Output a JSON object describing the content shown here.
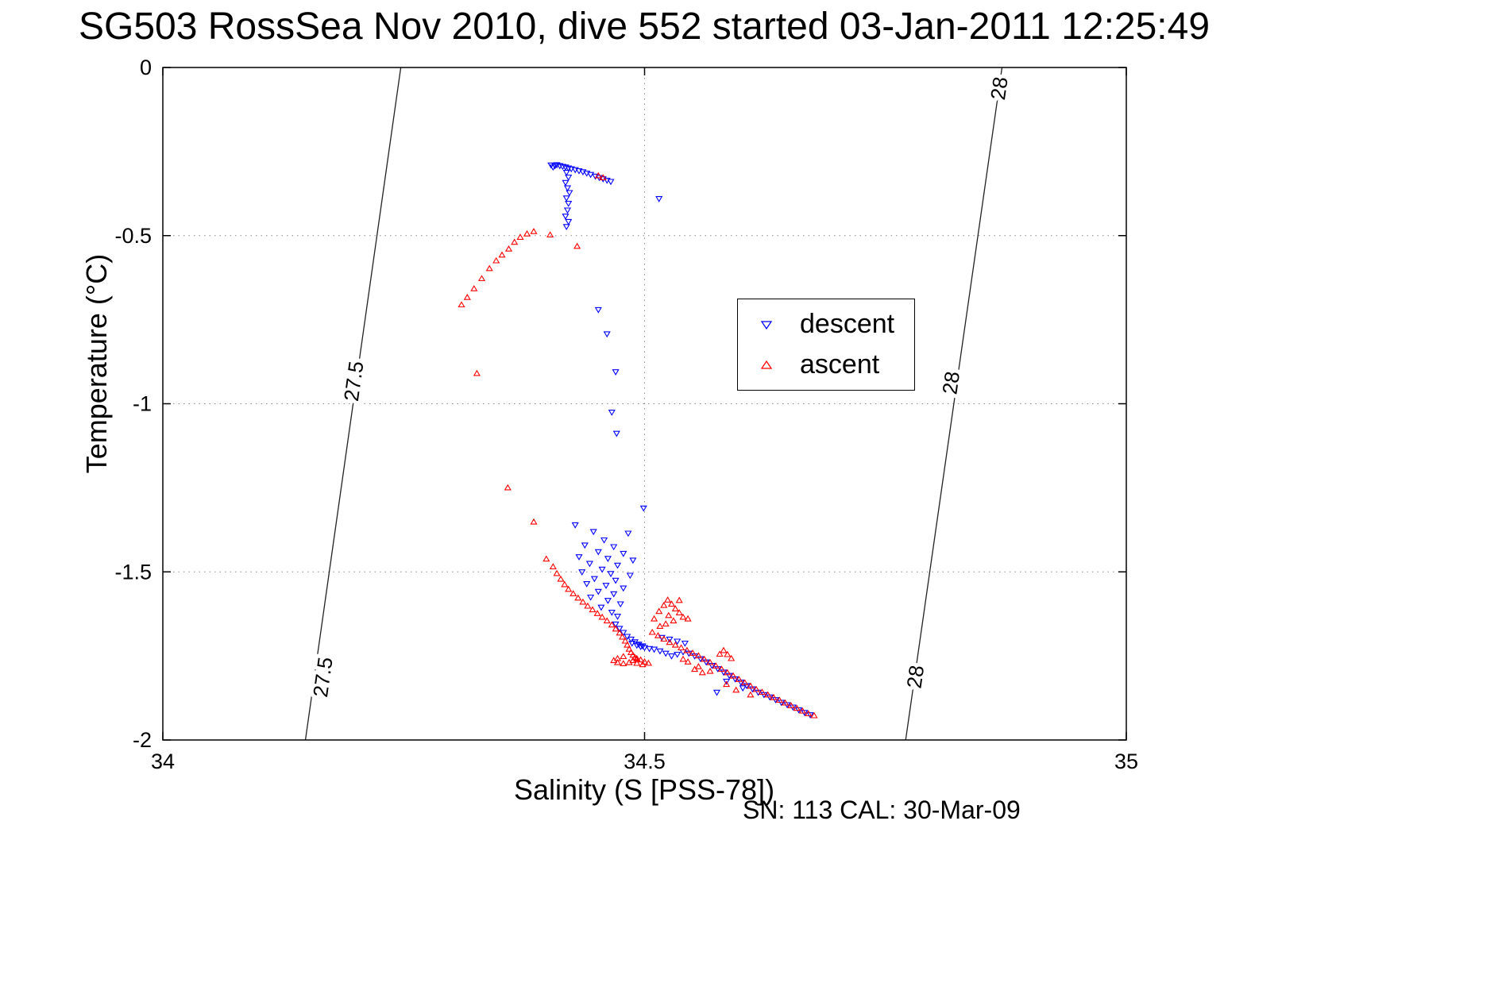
{
  "chart_data": {
    "type": "scatter",
    "title": "SG503 RossSea Nov 2010, dive 552 started 03-Jan-2011 12:25:49",
    "xlabel": "Salinity (S [PSS-78])",
    "ylabel": "Temperature (°C)",
    "annotation": "SN: 113  CAL: 30-Mar-09",
    "xlim": [
      34,
      35
    ],
    "ylim": [
      -2,
      0
    ],
    "xticks": [
      34,
      34.5,
      35
    ],
    "xtick_labels": [
      "34",
      "34.5",
      "35"
    ],
    "yticks": [
      0,
      -0.5,
      -1,
      -1.5,
      -2
    ],
    "ytick_labels": [
      "0",
      "-0.5",
      "-1",
      "-1.5",
      "-2"
    ],
    "grid": "dotted",
    "legend": {
      "position": "upper-right-inside",
      "items": [
        {
          "label": "descent",
          "marker": "triangle-down",
          "color": "#0000ff"
        },
        {
          "label": "ascent",
          "marker": "triangle-up",
          "color": "#ff0000"
        }
      ]
    },
    "contours": [
      {
        "label": "27.5",
        "color": "#222222",
        "line": [
          [
            34.247,
            0
          ],
          [
            34.148,
            -2
          ]
        ],
        "label_points": [
          {
            "s": 34.198,
            "t": -0.933,
            "angle": -82
          },
          {
            "s": 34.166,
            "t": -1.813,
            "angle": -82
          }
        ]
      },
      {
        "label": "28",
        "color": "#222222",
        "line": [
          [
            34.871,
            0
          ],
          [
            34.771,
            -2
          ]
        ],
        "label_points": [
          {
            "s": 34.868,
            "t": -0.062,
            "angle": -82
          },
          {
            "s": 34.818,
            "t": -0.938,
            "angle": -82
          },
          {
            "s": 34.781,
            "t": -1.812,
            "angle": -82
          }
        ]
      }
    ],
    "series": [
      {
        "name": "descent",
        "marker": "triangle-down",
        "color": "#0000ff",
        "points": [
          [
            34.403,
            -0.29
          ],
          [
            34.405,
            -0.296
          ],
          [
            34.407,
            -0.292
          ],
          [
            34.409,
            -0.289
          ],
          [
            34.412,
            -0.292
          ],
          [
            34.415,
            -0.294
          ],
          [
            34.418,
            -0.296
          ],
          [
            34.421,
            -0.299
          ],
          [
            34.424,
            -0.301
          ],
          [
            34.428,
            -0.304
          ],
          [
            34.432,
            -0.307
          ],
          [
            34.436,
            -0.31
          ],
          [
            34.44,
            -0.314
          ],
          [
            34.444,
            -0.318
          ],
          [
            34.449,
            -0.323
          ],
          [
            34.453,
            -0.327
          ],
          [
            34.457,
            -0.331
          ],
          [
            34.461,
            -0.335
          ],
          [
            34.465,
            -0.339
          ],
          [
            34.419,
            -0.312
          ],
          [
            34.421,
            -0.326
          ],
          [
            34.418,
            -0.342
          ],
          [
            34.42,
            -0.358
          ],
          [
            34.422,
            -0.372
          ],
          [
            34.419,
            -0.388
          ],
          [
            34.421,
            -0.404
          ],
          [
            34.42,
            -0.424
          ],
          [
            34.418,
            -0.442
          ],
          [
            34.421,
            -0.458
          ],
          [
            34.419,
            -0.473
          ],
          [
            34.515,
            -0.39
          ],
          [
            34.452,
            -0.72
          ],
          [
            34.461,
            -0.792
          ],
          [
            34.47,
            -0.905
          ],
          [
            34.466,
            -1.025
          ],
          [
            34.471,
            -1.088
          ],
          [
            34.499,
            -1.31
          ],
          [
            34.428,
            -1.36
          ],
          [
            34.447,
            -1.38
          ],
          [
            34.483,
            -1.385
          ],
          [
            34.458,
            -1.405
          ],
          [
            34.438,
            -1.42
          ],
          [
            34.468,
            -1.425
          ],
          [
            34.452,
            -1.44
          ],
          [
            34.478,
            -1.445
          ],
          [
            34.432,
            -1.455
          ],
          [
            34.462,
            -1.46
          ],
          [
            34.488,
            -1.465
          ],
          [
            34.443,
            -1.475
          ],
          [
            34.472,
            -1.48
          ],
          [
            34.456,
            -1.492
          ],
          [
            34.435,
            -1.5
          ],
          [
            34.465,
            -1.505
          ],
          [
            34.485,
            -1.51
          ],
          [
            34.448,
            -1.52
          ],
          [
            34.47,
            -1.525
          ],
          [
            34.44,
            -1.535
          ],
          [
            34.46,
            -1.54
          ],
          [
            34.478,
            -1.548
          ],
          [
            34.452,
            -1.558
          ],
          [
            34.468,
            -1.565
          ],
          [
            34.444,
            -1.575
          ],
          [
            34.462,
            -1.585
          ],
          [
            34.475,
            -1.595
          ],
          [
            34.455,
            -1.605
          ],
          [
            34.466,
            -1.62
          ],
          [
            34.472,
            -1.632
          ],
          [
            34.518,
            -1.695
          ],
          [
            34.526,
            -1.7
          ],
          [
            34.534,
            -1.706
          ],
          [
            34.542,
            -1.712
          ],
          [
            34.47,
            -1.655
          ],
          [
            34.474,
            -1.668
          ],
          [
            34.478,
            -1.68
          ],
          [
            34.482,
            -1.692
          ],
          [
            34.486,
            -1.7
          ],
          [
            34.49,
            -1.708
          ],
          [
            34.494,
            -1.715
          ],
          [
            34.498,
            -1.72
          ],
          [
            34.487,
            -1.712
          ],
          [
            34.492,
            -1.718
          ],
          [
            34.496,
            -1.722
          ],
          [
            34.5,
            -1.725
          ],
          [
            34.505,
            -1.728
          ],
          [
            34.51,
            -1.73
          ],
          [
            34.516,
            -1.735
          ],
          [
            34.522,
            -1.742
          ],
          [
            34.528,
            -1.75
          ],
          [
            34.534,
            -1.745
          ],
          [
            34.54,
            -1.738
          ],
          [
            34.546,
            -1.742
          ],
          [
            34.552,
            -1.75
          ],
          [
            34.558,
            -1.758
          ],
          [
            34.564,
            -1.768
          ],
          [
            34.57,
            -1.778
          ],
          [
            34.576,
            -1.788
          ],
          [
            34.582,
            -1.798
          ],
          [
            34.588,
            -1.808
          ],
          [
            34.594,
            -1.818
          ],
          [
            34.6,
            -1.828
          ],
          [
            34.606,
            -1.838
          ],
          [
            34.612,
            -1.848
          ],
          [
            34.618,
            -1.858
          ],
          [
            34.624,
            -1.865
          ],
          [
            34.63,
            -1.872
          ],
          [
            34.636,
            -1.88
          ],
          [
            34.642,
            -1.888
          ],
          [
            34.648,
            -1.895
          ],
          [
            34.654,
            -1.902
          ],
          [
            34.66,
            -1.91
          ],
          [
            34.666,
            -1.918
          ],
          [
            34.672,
            -1.925
          ],
          [
            34.585,
            -1.825
          ],
          [
            34.602,
            -1.845
          ],
          [
            34.575,
            -1.858
          ]
        ]
      },
      {
        "name": "ascent",
        "marker": "triangle-up",
        "color": "#ff0000",
        "points": [
          [
            34.385,
            -0.488
          ],
          [
            34.378,
            -0.495
          ],
          [
            34.371,
            -0.505
          ],
          [
            34.365,
            -0.52
          ],
          [
            34.359,
            -0.54
          ],
          [
            34.352,
            -0.558
          ],
          [
            34.346,
            -0.575
          ],
          [
            34.339,
            -0.598
          ],
          [
            34.331,
            -0.628
          ],
          [
            34.323,
            -0.658
          ],
          [
            34.316,
            -0.684
          ],
          [
            34.31,
            -0.706
          ],
          [
            34.43,
            -0.532
          ],
          [
            34.402,
            -0.498
          ],
          [
            34.452,
            -0.322
          ],
          [
            34.457,
            -0.328
          ],
          [
            34.326,
            -0.91
          ],
          [
            34.358,
            -1.25
          ],
          [
            34.385,
            -1.352
          ],
          [
            34.398,
            -1.462
          ],
          [
            34.405,
            -1.485
          ],
          [
            34.409,
            -1.505
          ],
          [
            34.413,
            -1.522
          ],
          [
            34.417,
            -1.538
          ],
          [
            34.421,
            -1.552
          ],
          [
            34.426,
            -1.565
          ],
          [
            34.431,
            -1.578
          ],
          [
            34.436,
            -1.59
          ],
          [
            34.441,
            -1.602
          ],
          [
            34.446,
            -1.613
          ],
          [
            34.451,
            -1.624
          ],
          [
            34.456,
            -1.635
          ],
          [
            34.461,
            -1.646
          ],
          [
            34.466,
            -1.658
          ],
          [
            34.47,
            -1.67
          ],
          [
            34.474,
            -1.682
          ],
          [
            34.477,
            -1.694
          ],
          [
            34.48,
            -1.706
          ],
          [
            34.482,
            -1.718
          ],
          [
            34.484,
            -1.73
          ],
          [
            34.486,
            -1.74
          ],
          [
            34.488,
            -1.748
          ],
          [
            34.49,
            -1.755
          ],
          [
            34.492,
            -1.76
          ],
          [
            34.478,
            -1.752
          ],
          [
            34.472,
            -1.758
          ],
          [
            34.468,
            -1.764
          ],
          [
            34.472,
            -1.77
          ],
          [
            34.478,
            -1.773
          ],
          [
            34.484,
            -1.77
          ],
          [
            34.488,
            -1.764
          ],
          [
            34.492,
            -1.758
          ],
          [
            34.496,
            -1.762
          ],
          [
            34.5,
            -1.768
          ],
          [
            34.504,
            -1.772
          ],
          [
            34.498,
            -1.776
          ],
          [
            34.492,
            -1.772
          ],
          [
            34.51,
            -1.64
          ],
          [
            34.515,
            -1.618
          ],
          [
            34.52,
            -1.6
          ],
          [
            34.524,
            -1.584
          ],
          [
            34.528,
            -1.596
          ],
          [
            34.532,
            -1.61
          ],
          [
            34.536,
            -1.622
          ],
          [
            34.54,
            -1.635
          ],
          [
            34.53,
            -1.646
          ],
          [
            34.522,
            -1.655
          ],
          [
            34.516,
            -1.662
          ],
          [
            34.536,
            -1.585
          ],
          [
            34.545,
            -1.64
          ],
          [
            34.525,
            -1.63
          ],
          [
            34.578,
            -1.745
          ],
          [
            34.582,
            -1.734
          ],
          [
            34.586,
            -1.746
          ],
          [
            34.59,
            -1.758
          ],
          [
            34.508,
            -1.68
          ],
          [
            34.514,
            -1.69
          ],
          [
            34.52,
            -1.7
          ],
          [
            34.526,
            -1.71
          ],
          [
            34.532,
            -1.718
          ],
          [
            34.538,
            -1.726
          ],
          [
            34.544,
            -1.734
          ],
          [
            34.55,
            -1.742
          ],
          [
            34.556,
            -1.75
          ],
          [
            34.562,
            -1.76
          ],
          [
            34.568,
            -1.77
          ],
          [
            34.574,
            -1.78
          ],
          [
            34.58,
            -1.79
          ],
          [
            34.586,
            -1.8
          ],
          [
            34.592,
            -1.81
          ],
          [
            34.598,
            -1.82
          ],
          [
            34.604,
            -1.83
          ],
          [
            34.61,
            -1.84
          ],
          [
            34.616,
            -1.85
          ],
          [
            34.622,
            -1.858
          ],
          [
            34.628,
            -1.866
          ],
          [
            34.634,
            -1.874
          ],
          [
            34.64,
            -1.882
          ],
          [
            34.646,
            -1.89
          ],
          [
            34.652,
            -1.898
          ],
          [
            34.658,
            -1.906
          ],
          [
            34.664,
            -1.914
          ],
          [
            34.67,
            -1.922
          ],
          [
            34.676,
            -1.928
          ],
          [
            34.545,
            -1.768
          ],
          [
            34.556,
            -1.782
          ],
          [
            34.568,
            -1.796
          ],
          [
            34.54,
            -1.76
          ],
          [
            34.585,
            -1.835
          ],
          [
            34.56,
            -1.8
          ],
          [
            34.595,
            -1.852
          ],
          [
            34.61,
            -1.866
          ],
          [
            34.552,
            -1.79
          ]
        ]
      }
    ]
  }
}
